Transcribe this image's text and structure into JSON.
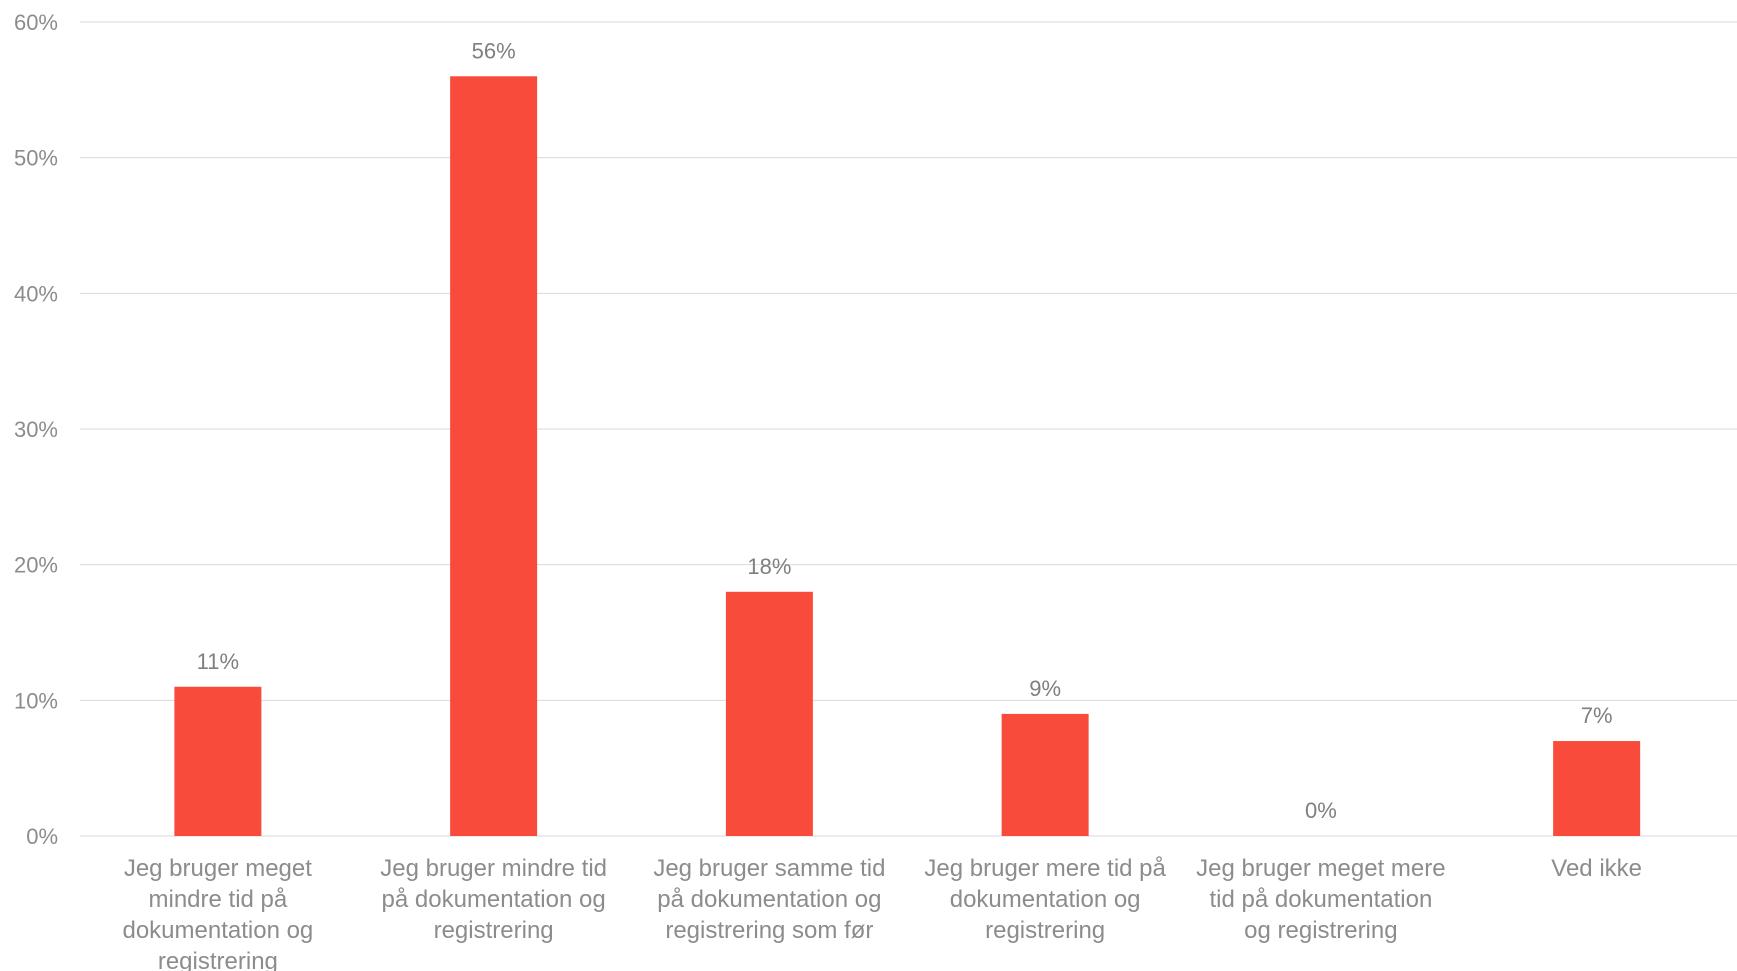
{
  "chart_data": {
    "type": "bar",
    "categories": [
      "Jeg bruger meget mindre tid på dokumentation og registrering",
      "Jeg bruger mindre tid på dokumentation og registrering",
      "Jeg bruger samme tid på dokumentation og registrering som før",
      "Jeg bruger mere tid på dokumentation og registrering",
      "Jeg bruger meget mere tid på dokumentation og registrering",
      "Ved ikke"
    ],
    "category_label_lines": [
      [
        "Jeg bruger meget",
        "mindre tid på",
        "dokumentation og",
        "registrering"
      ],
      [
        "Jeg bruger mindre tid",
        "på dokumentation og",
        "registrering"
      ],
      [
        "Jeg bruger samme tid",
        "på dokumentation og",
        "registrering som før"
      ],
      [
        "Jeg bruger mere tid på",
        "dokumentation og",
        "registrering"
      ],
      [
        "Jeg bruger meget mere",
        "tid på dokumentation",
        "og registrering"
      ],
      [
        "Ved ikke"
      ]
    ],
    "values": [
      11,
      56,
      18,
      9,
      0,
      7
    ],
    "data_labels": [
      "11%",
      "56%",
      "18%",
      "9%",
      "0%",
      "7%"
    ],
    "yticks": [
      0,
      10,
      20,
      30,
      40,
      50,
      60
    ],
    "ytick_labels": [
      "0%",
      "10%",
      "20%",
      "30%",
      "40%",
      "50%",
      "60%"
    ],
    "ylim": [
      0,
      60
    ],
    "grid": true,
    "bar_color": "#f84b3b",
    "title": "",
    "xlabel": "",
    "ylabel": ""
  }
}
